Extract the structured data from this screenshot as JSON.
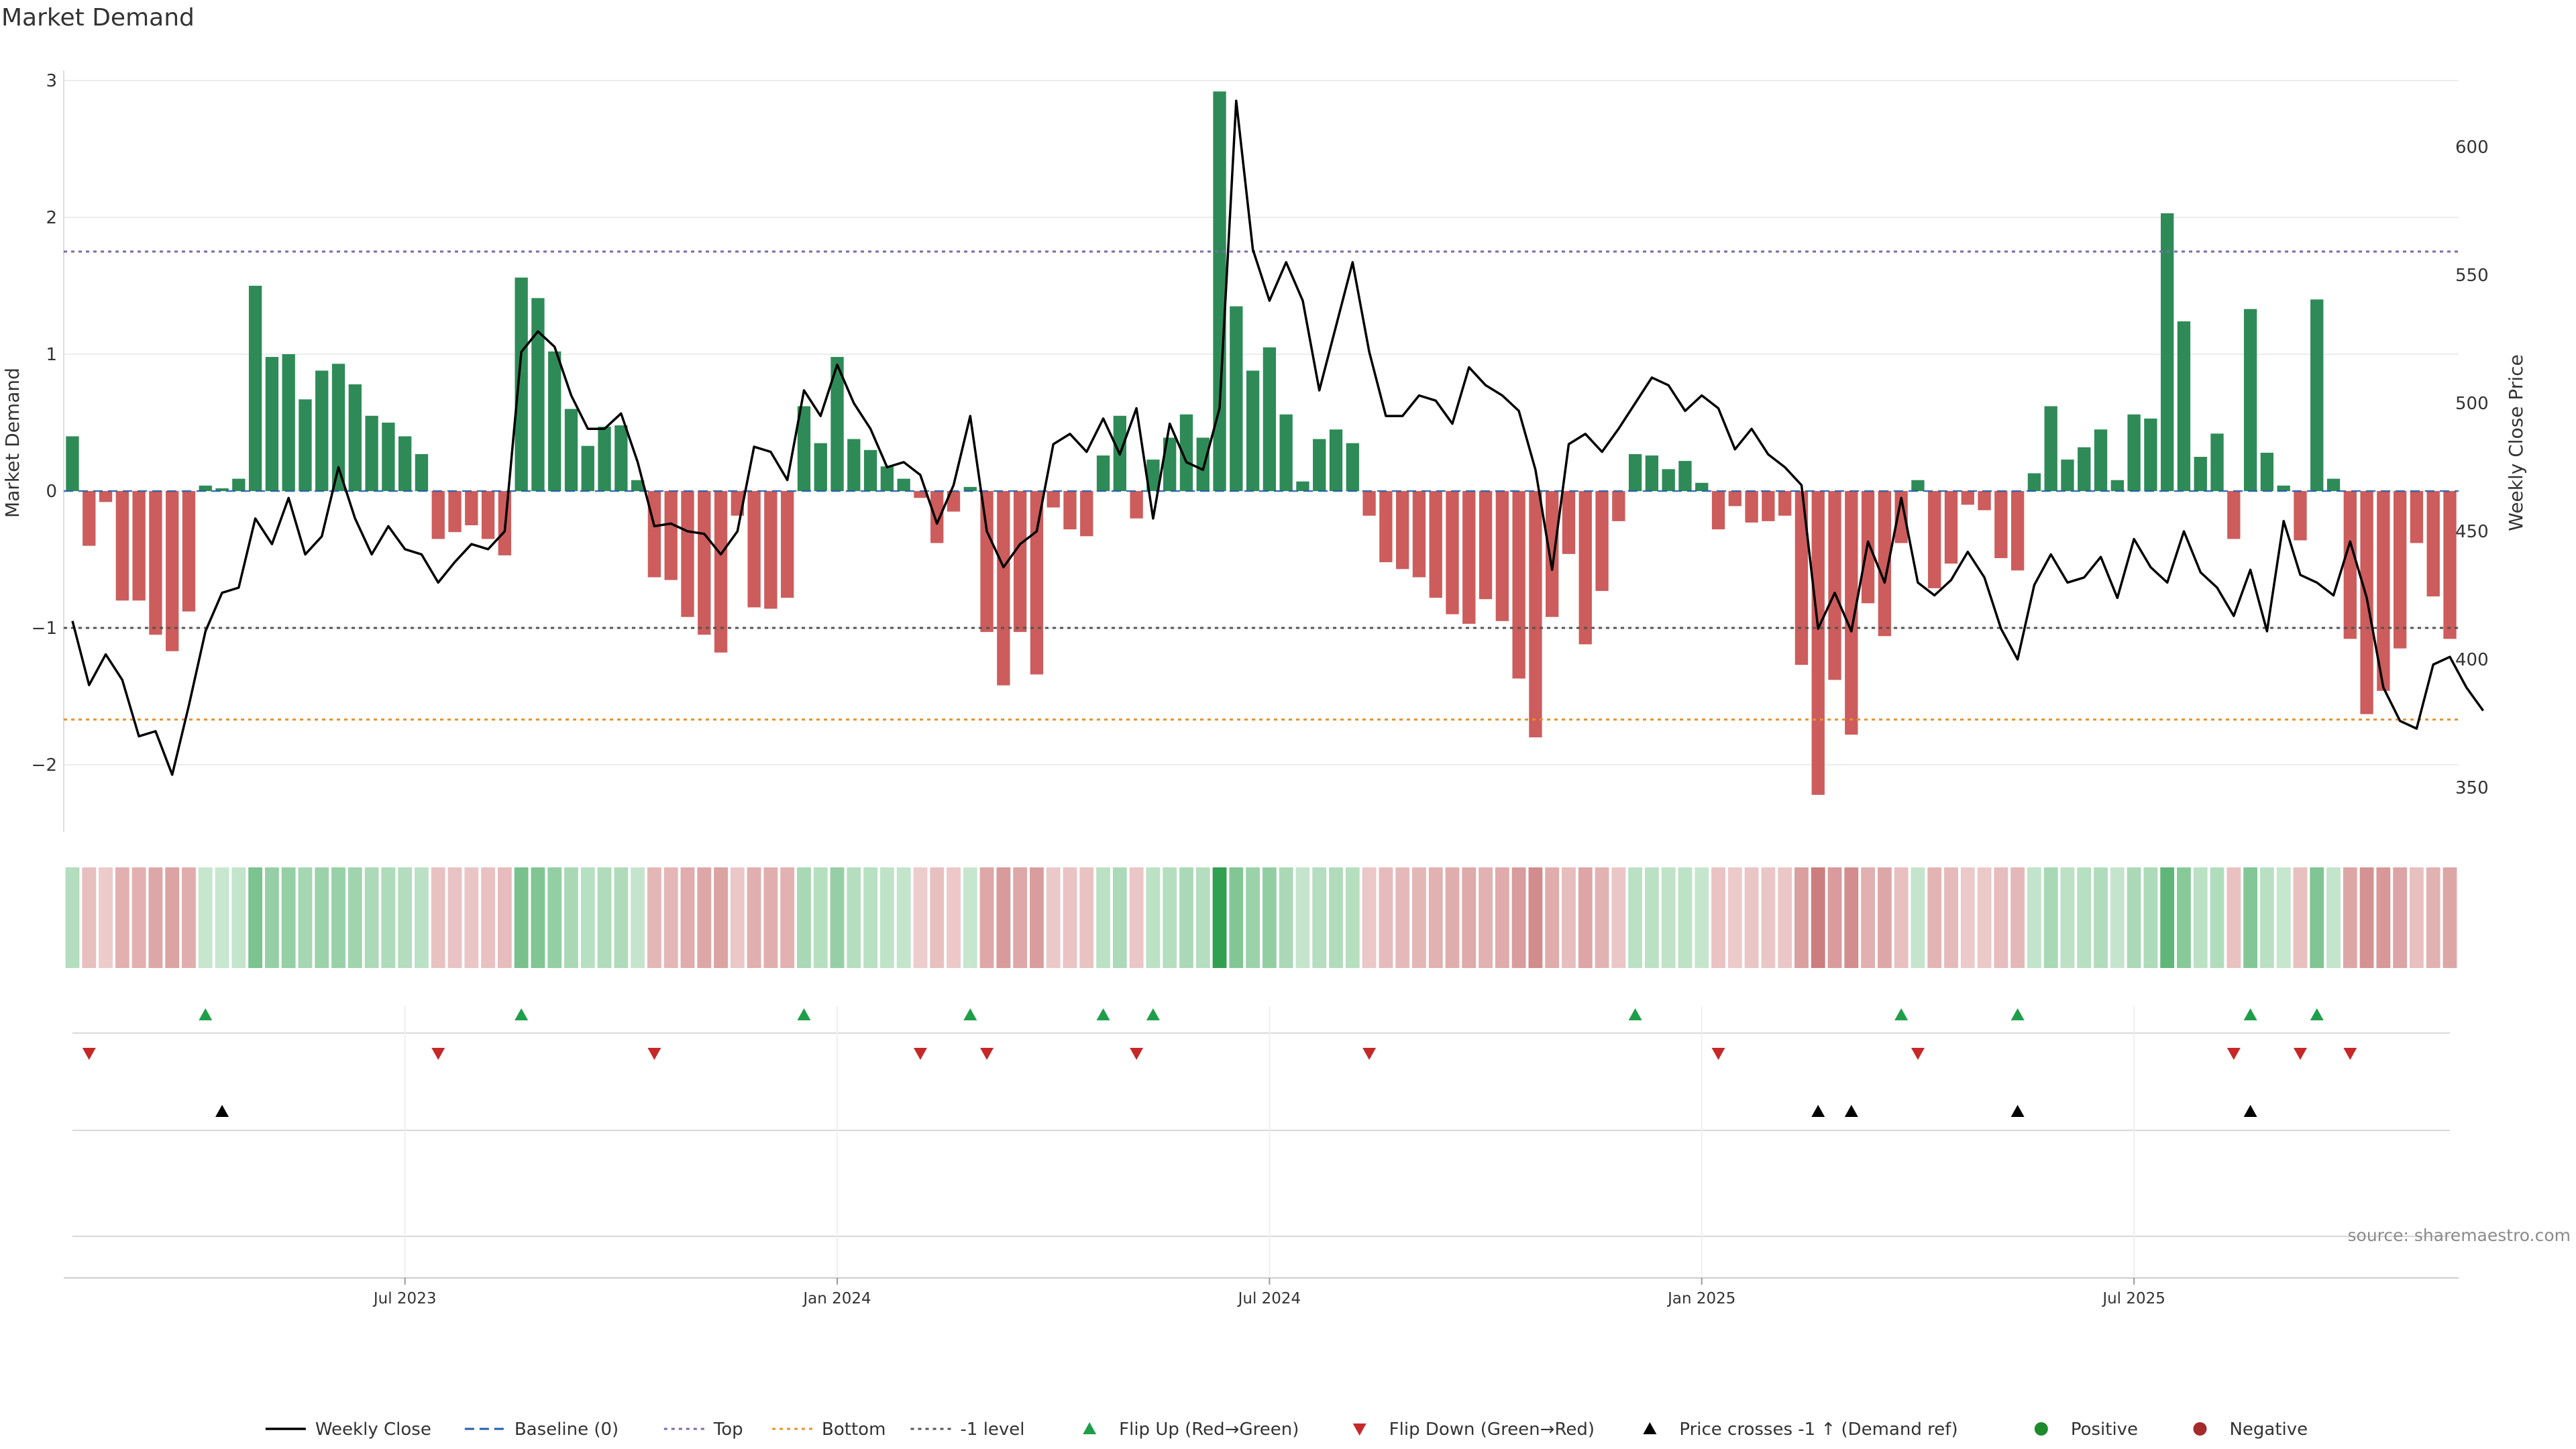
{
  "chart_data": {
    "type": "bar",
    "title": "Market Demand",
    "ylabel": "Market Demand",
    "y2label": "Weekly Close Price",
    "ylim": [
      -2.5,
      3.1
    ],
    "y2lim": [
      340,
      625
    ],
    "yticks": [
      {
        "v": 3,
        "label": "3"
      },
      {
        "v": 2,
        "label": "2"
      },
      {
        "v": 1,
        "label": "1"
      },
      {
        "v": 0,
        "label": "0"
      },
      {
        "v": -1,
        "label": "−1"
      },
      {
        "v": -2,
        "label": "−2"
      }
    ],
    "y2ticks": [
      {
        "v": 600,
        "label": "600"
      },
      {
        "v": 550,
        "label": "550"
      },
      {
        "v": 500,
        "label": "500"
      },
      {
        "v": 450,
        "label": "450"
      },
      {
        "v": 400,
        "label": "400"
      },
      {
        "v": 350,
        "label": "350"
      }
    ],
    "xticks": [
      {
        "i": 20,
        "label": "Jul 2023"
      },
      {
        "i": 46,
        "label": "Jan 2024"
      },
      {
        "i": 72,
        "label": "Jul 2024"
      },
      {
        "i": 98,
        "label": "Jan 2025"
      },
      {
        "i": 124,
        "label": "Jul 2025"
      }
    ],
    "reference_lines": {
      "top": 1.75,
      "bottom": -1.67,
      "minus_one": -1.0,
      "baseline": 0
    },
    "demand": [
      0.4,
      -0.4,
      -0.08,
      -0.8,
      -0.8,
      -1.05,
      -1.17,
      -0.88,
      0.04,
      0.02,
      0.09,
      1.5,
      0.98,
      1.0,
      0.67,
      0.88,
      0.93,
      0.78,
      0.55,
      0.5,
      0.4,
      0.27,
      -0.35,
      -0.3,
      -0.25,
      -0.35,
      -0.47,
      1.56,
      1.41,
      1.02,
      0.6,
      0.33,
      0.47,
      0.48,
      0.08,
      -0.63,
      -0.65,
      -0.92,
      -1.05,
      -1.18,
      -0.18,
      -0.85,
      -0.86,
      -0.78,
      0.62,
      0.35,
      0.98,
      0.38,
      0.3,
      0.18,
      0.09,
      -0.05,
      -0.38,
      -0.15,
      0.03,
      -1.03,
      -1.42,
      -1.03,
      -1.34,
      -0.12,
      -0.28,
      -0.33,
      0.26,
      0.55,
      -0.2,
      0.23,
      0.39,
      0.56,
      0.39,
      2.92,
      1.35,
      0.88,
      1.05,
      0.56,
      0.07,
      0.38,
      0.45,
      0.35,
      -0.18,
      -0.52,
      -0.57,
      -0.63,
      -0.78,
      -0.9,
      -0.97,
      -0.79,
      -0.95,
      -1.37,
      -1.8,
      -0.92,
      -0.46,
      -1.12,
      -0.73,
      -0.22,
      0.27,
      0.26,
      0.16,
      0.22,
      0.06,
      -0.28,
      -0.11,
      -0.23,
      -0.22,
      -0.18,
      -1.27,
      -2.22,
      -1.38,
      -1.78,
      -0.82,
      -1.06,
      -0.38,
      0.08,
      -0.71,
      -0.53,
      -0.1,
      -0.14,
      -0.49,
      -0.58,
      0.13,
      0.62,
      0.23,
      0.32,
      0.45,
      0.08,
      0.56,
      0.53,
      2.03,
      1.24,
      0.25,
      0.42,
      -0.35,
      1.33,
      0.28,
      0.04,
      -0.36,
      1.4,
      0.09,
      -1.08,
      -1.63,
      -1.46,
      -1.15,
      -0.38,
      -0.77,
      -1.08
    ],
    "close": [
      415,
      390,
      402,
      392,
      370,
      372,
      355,
      382,
      411,
      426,
      428,
      455,
      445,
      463,
      441,
      448,
      475,
      455,
      441,
      452,
      443,
      441,
      430,
      438,
      445,
      443,
      450,
      520,
      528,
      522,
      503,
      490,
      490,
      496,
      477,
      452,
      453,
      450,
      449,
      441,
      450,
      483,
      481,
      470,
      505,
      495,
      515,
      500,
      490,
      475,
      477,
      472,
      453,
      468,
      495,
      450,
      436,
      445,
      450,
      484,
      488,
      481,
      494,
      480,
      498,
      455,
      492,
      477,
      474,
      498,
      618,
      560,
      540,
      555,
      540,
      505,
      530,
      555,
      520,
      495,
      495,
      503,
      501,
      492,
      514,
      507,
      503,
      497,
      474,
      435,
      484,
      488,
      481,
      490,
      500,
      510,
      507,
      497,
      503,
      498,
      482,
      490,
      480,
      475,
      468,
      412,
      426,
      411,
      446,
      430,
      463,
      430,
      425,
      431,
      442,
      432,
      412,
      400,
      429,
      441,
      430,
      432,
      440,
      424,
      447,
      436,
      430,
      450,
      434,
      428,
      417,
      435,
      411,
      454,
      433,
      430,
      425,
      446,
      424,
      389,
      376,
      373,
      398,
      401,
      389,
      380
    ],
    "flip_up": [
      8,
      27,
      44,
      54,
      62,
      65,
      94,
      110,
      117,
      131,
      135
    ],
    "flip_down": [
      1,
      22,
      35,
      51,
      55,
      64,
      78,
      99,
      111,
      130,
      134,
      137
    ],
    "price_cross": [
      9,
      105,
      107,
      117,
      131
    ],
    "source": "source: sharemaestro.com",
    "legend": [
      {
        "type": "line",
        "color": "#000000",
        "label": "Weekly Close"
      },
      {
        "type": "dash",
        "color": "#1f5fa8",
        "label": "Baseline (0)"
      },
      {
        "type": "dot",
        "color": "#7b68ae",
        "label": "Top"
      },
      {
        "type": "dot",
        "color": "#e8912d",
        "label": "Bottom"
      },
      {
        "type": "dot",
        "color": "#555555",
        "label": "-1 level"
      },
      {
        "type": "tri-up",
        "color": "#1f9e4a",
        "label": "Flip Up (Red→Green)"
      },
      {
        "type": "tri-down",
        "color": "#c62828",
        "label": "Flip Down (Green→Red)"
      },
      {
        "type": "tri-up",
        "color": "#000000",
        "label": "Price crosses -1 ↑ (Demand ref)"
      },
      {
        "type": "circle",
        "color": "#1e8a2e",
        "label": "Positive"
      },
      {
        "type": "circle",
        "color": "#a52a2a",
        "label": "Negative"
      }
    ],
    "colors": {
      "positive": "#2e8b57",
      "negative": "#cd5c5c",
      "grid": "#ececec"
    }
  }
}
